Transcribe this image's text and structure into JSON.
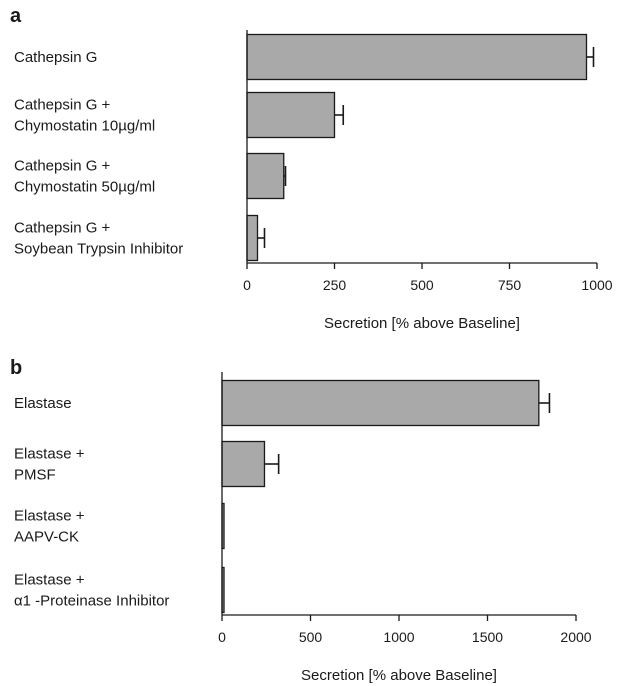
{
  "chart_data": [
    {
      "type": "bar",
      "orientation": "horizontal",
      "panel": "a",
      "categories": [
        [
          "Cathepsin G"
        ],
        [
          "Cathepsin G +",
          "Chymostatin 10µg/ml"
        ],
        [
          "Cathepsin G +",
          "Chymostatin 50µg/ml"
        ],
        [
          "Cathepsin G +",
          "Soybean Trypsin Inhibitor"
        ]
      ],
      "values": [
        970,
        250,
        105,
        30
      ],
      "errors": [
        20,
        25,
        5,
        20
      ],
      "xlim": [
        0,
        1000
      ],
      "xticks": [
        0,
        250,
        500,
        750,
        1000
      ],
      "xlabel": "Secretion  [% above Baseline]",
      "ylabel": "",
      "title": "",
      "colors": {
        "bar": "#a9a9a9",
        "edge": "#1a1a1a"
      }
    },
    {
      "type": "bar",
      "orientation": "horizontal",
      "panel": "b",
      "categories": [
        [
          "Elastase"
        ],
        [
          "Elastase +",
          "PMSF"
        ],
        [
          "Elastase +",
          "AAPV-CK"
        ],
        [
          "Elastase +",
          "α1 -Proteinase Inhibitor"
        ]
      ],
      "values": [
        1790,
        240,
        10,
        10
      ],
      "errors": [
        60,
        80,
        0,
        0
      ],
      "xlim": [
        0,
        2000
      ],
      "xticks": [
        0,
        500,
        1000,
        1500,
        2000
      ],
      "xlabel": "Secretion  [% above Baseline]",
      "ylabel": "",
      "title": "",
      "colors": {
        "bar": "#a9a9a9",
        "edge": "#1a1a1a"
      }
    }
  ]
}
